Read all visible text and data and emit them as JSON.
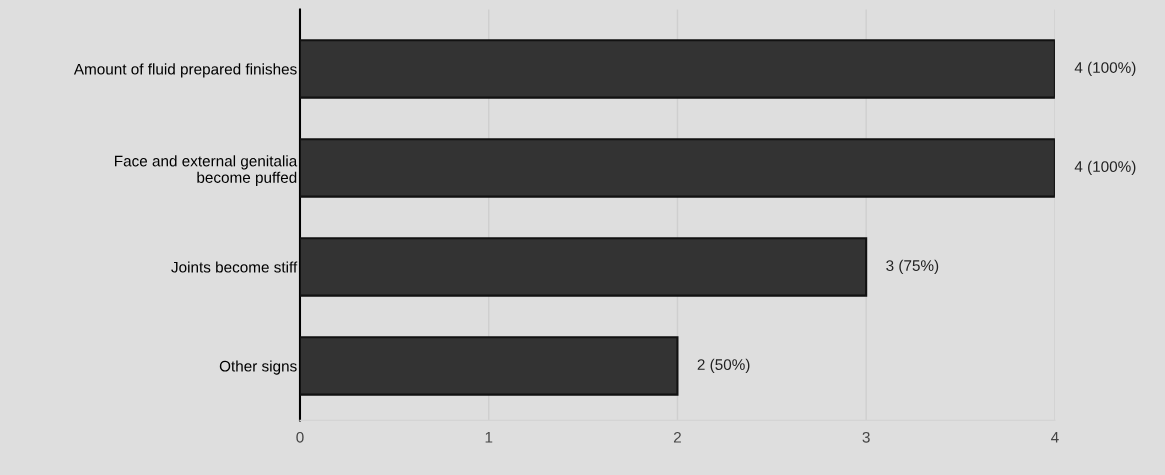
{
  "chart_data": {
    "type": "bar",
    "orientation": "horizontal",
    "categories": [
      "Amount of fluid prepared finishes",
      "Face and external genitalia\nbecome puffed",
      "Joints become stiff",
      "Other signs"
    ],
    "values": [
      4,
      4,
      3,
      2
    ],
    "value_labels": [
      "4 (100%)",
      "4 (100%)",
      "3 (75%)",
      "2 (50%)"
    ],
    "color": "#333333",
    "xlim": [
      0,
      4
    ],
    "xticks": [
      0,
      1,
      2,
      3,
      4
    ],
    "grid": "x"
  }
}
